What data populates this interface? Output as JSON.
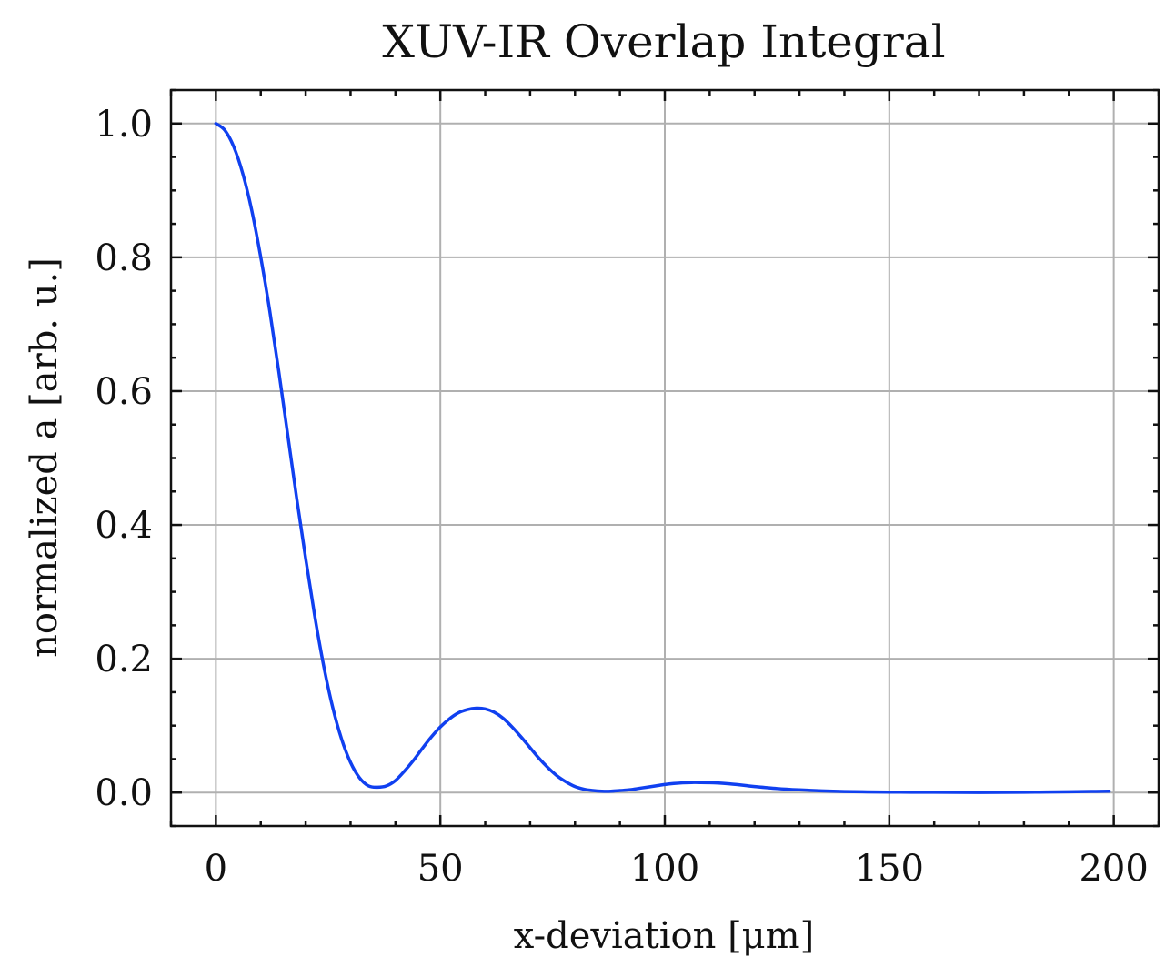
{
  "chart_data": {
    "type": "line",
    "title": "XUV-IR Overlap Integral",
    "xlabel": "x-deviation [μm]",
    "ylabel": "normalized a [arb. u.]",
    "xlim": [
      -10,
      210
    ],
    "ylim": [
      -0.05,
      1.05
    ],
    "x_ticks": [
      0,
      50,
      100,
      150,
      200
    ],
    "x_tick_labels": [
      "0",
      "50",
      "100",
      "150",
      "200"
    ],
    "x_minor_step": 10,
    "y_ticks": [
      0.0,
      0.2,
      0.4,
      0.6,
      0.8,
      1.0
    ],
    "y_tick_labels": [
      "0.0",
      "0.2",
      "0.4",
      "0.6",
      "0.8",
      "1.0"
    ],
    "y_minor_step": 0.05,
    "grid": true,
    "series": [
      {
        "color": "#1040f0",
        "x": [
          0,
          2,
          4,
          6,
          8,
          10,
          12,
          14,
          16,
          18,
          20,
          22,
          24,
          26,
          28,
          30,
          32,
          34,
          36,
          38,
          40,
          42,
          44,
          46,
          48,
          50,
          52,
          54,
          56,
          58,
          60,
          62,
          64,
          66,
          68,
          70,
          72,
          74,
          76,
          78,
          80,
          82,
          84,
          86,
          88,
          90,
          92,
          94,
          96,
          98,
          100,
          102,
          104,
          106,
          108,
          110,
          112,
          114,
          116,
          118,
          120,
          125,
          130,
          135,
          140,
          145,
          150,
          155,
          160,
          165,
          170,
          175,
          180,
          185,
          190,
          195,
          199
        ],
        "y": [
          1.0,
          0.99,
          0.965,
          0.925,
          0.87,
          0.8,
          0.72,
          0.63,
          0.535,
          0.44,
          0.35,
          0.265,
          0.19,
          0.128,
          0.08,
          0.045,
          0.022,
          0.01,
          0.008,
          0.01,
          0.018,
          0.032,
          0.048,
          0.066,
          0.083,
          0.098,
          0.11,
          0.119,
          0.124,
          0.126,
          0.125,
          0.12,
          0.111,
          0.098,
          0.083,
          0.067,
          0.051,
          0.037,
          0.025,
          0.016,
          0.009,
          0.005,
          0.003,
          0.002,
          0.002,
          0.003,
          0.004,
          0.006,
          0.008,
          0.01,
          0.012,
          0.0135,
          0.0145,
          0.015,
          0.015,
          0.0148,
          0.0142,
          0.0133,
          0.012,
          0.0105,
          0.009,
          0.006,
          0.004,
          0.0025,
          0.0015,
          0.001,
          0.0007,
          0.0005,
          0.0004,
          0.0003,
          0.0002,
          0.0003,
          0.0005,
          0.0008,
          0.0012,
          0.0016,
          0.002
        ]
      }
    ]
  }
}
